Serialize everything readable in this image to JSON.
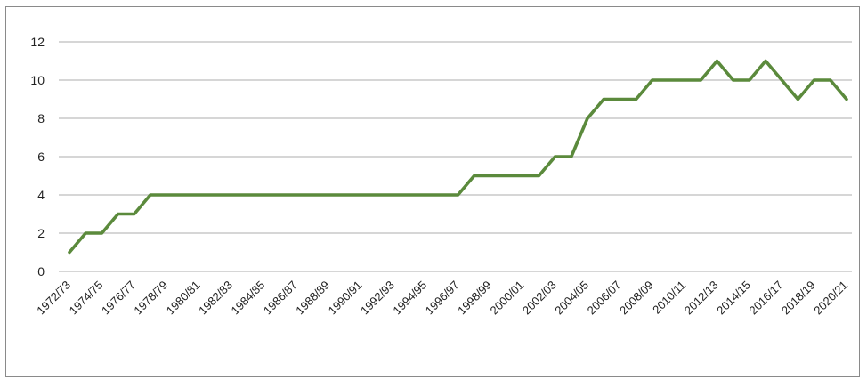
{
  "chart_data": {
    "type": "line",
    "title": "",
    "xlabel": "",
    "ylabel": "",
    "ylim": [
      0,
      12
    ],
    "yticks": [
      0,
      2,
      4,
      6,
      8,
      10,
      12
    ],
    "grid": true,
    "legend": "none",
    "x": [
      "1972/73",
      "1973/74",
      "1974/75",
      "1975/76",
      "1976/77",
      "1977/78",
      "1978/79",
      "1979/80",
      "1980/81",
      "1981/82",
      "1982/83",
      "1983/84",
      "1984/85",
      "1985/86",
      "1986/87",
      "1987/88",
      "1988/89",
      "1989/90",
      "1990/91",
      "1991/92",
      "1992/93",
      "1993/94",
      "1994/95",
      "1995/96",
      "1996/97",
      "1997/98",
      "1998/99",
      "1999/00",
      "2000/01",
      "2001/02",
      "2002/03",
      "2003/04",
      "2004/05",
      "2005/06",
      "2006/07",
      "2007/08",
      "2008/09",
      "2009/10",
      "2010/11",
      "2011/12",
      "2012/13",
      "2013/14",
      "2014/15",
      "2015/16",
      "2016/17",
      "2017/18",
      "2018/19",
      "2019/20",
      "2020/21"
    ],
    "xtick_labels": [
      "1972/73",
      "1974/75",
      "1976/77",
      "1978/79",
      "1980/81",
      "1982/83",
      "1984/85",
      "1986/87",
      "1988/89",
      "1990/91",
      "1992/93",
      "1994/95",
      "1996/97",
      "1998/99",
      "2000/01",
      "2002/03",
      "2004/05",
      "2006/07",
      "2008/09",
      "2010/11",
      "2012/13",
      "2014/15",
      "2016/17",
      "2018/19",
      "2020/21"
    ],
    "series": [
      {
        "color": "#5b8a3c",
        "values": [
          1,
          2,
          2,
          3,
          3,
          4,
          4,
          4,
          4,
          4,
          4,
          4,
          4,
          4,
          4,
          4,
          4,
          4,
          4,
          4,
          4,
          4,
          4,
          4,
          4,
          5,
          5,
          5,
          5,
          5,
          6,
          6,
          8,
          9,
          9,
          9,
          10,
          10,
          10,
          10,
          11,
          10,
          10,
          11,
          10,
          9,
          10,
          10,
          9
        ]
      }
    ]
  }
}
